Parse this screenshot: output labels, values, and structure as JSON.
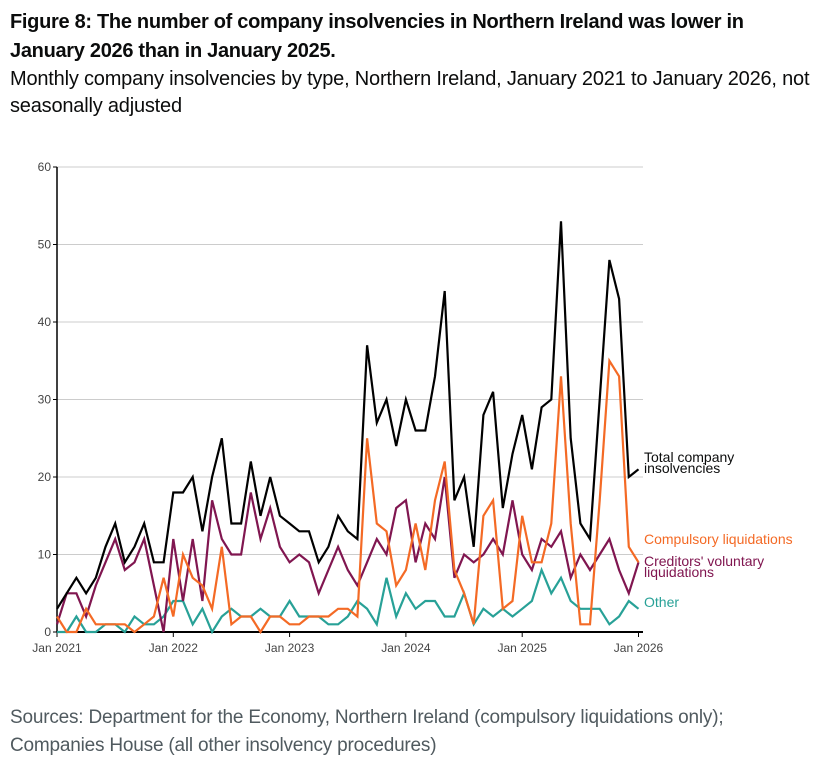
{
  "header": {
    "title": "Figure 8: The number of company insolvencies in Northern Ireland was lower in January 2026 than in January 2025.",
    "subtitle": "Monthly company insolvencies by type, Northern Ireland, January 2021 to January 2026, not seasonally adjusted"
  },
  "footer": {
    "source": "Sources: Department for the Economy, Northern Ireland (compulsory liquidations only); Companies House (all other insolvency procedures)"
  },
  "chart_data": {
    "type": "line",
    "title": "Monthly company insolvencies by type, Northern Ireland, January 2021 to January 2026, not seasonally adjusted",
    "xlabel": "",
    "ylabel": "",
    "ylim": [
      0,
      60
    ],
    "yticks": [
      "0",
      "10",
      "20",
      "30",
      "40",
      "50",
      "60"
    ],
    "xticks": [
      "Jan 2021",
      "Jan 2022",
      "Jan 2023",
      "Jan 2024",
      "Jan 2025",
      "Jan 2026"
    ],
    "x_start": "Jan 2021",
    "x_end": "Jan 2026",
    "grid": "horizontal",
    "legend": "right (direct labels at line ends)",
    "x": [
      "Jan 2021",
      "Feb 2021",
      "Mar 2021",
      "Apr 2021",
      "May 2021",
      "Jun 2021",
      "Jul 2021",
      "Aug 2021",
      "Sep 2021",
      "Oct 2021",
      "Nov 2021",
      "Dec 2021",
      "Jan 2022",
      "Feb 2022",
      "Mar 2022",
      "Apr 2022",
      "May 2022",
      "Jun 2022",
      "Jul 2022",
      "Aug 2022",
      "Sep 2022",
      "Oct 2022",
      "Nov 2022",
      "Dec 2022",
      "Jan 2023",
      "Feb 2023",
      "Mar 2023",
      "Apr 2023",
      "May 2023",
      "Jun 2023",
      "Jul 2023",
      "Aug 2023",
      "Sep 2023",
      "Oct 2023",
      "Nov 2023",
      "Dec 2023",
      "Jan 2024",
      "Feb 2024",
      "Mar 2024",
      "Apr 2024",
      "May 2024",
      "Jun 2024",
      "Jul 2024",
      "Aug 2024",
      "Sep 2024",
      "Oct 2024",
      "Nov 2024",
      "Dec 2024",
      "Jan 2025",
      "Feb 2025",
      "Mar 2025",
      "Apr 2025",
      "May 2025",
      "Jun 2025",
      "Jul 2025",
      "Aug 2025",
      "Sep 2025",
      "Oct 2025",
      "Nov 2025",
      "Dec 2025",
      "Jan 2026"
    ],
    "series": [
      {
        "name": "Total company insolvencies",
        "legend_lines": [
          "Total company",
          "insolvencies"
        ],
        "color": "#000000",
        "values": [
          3,
          5,
          7,
          5,
          7,
          11,
          14,
          9,
          11,
          14,
          9,
          9,
          18,
          18,
          20,
          13,
          20,
          25,
          14,
          14,
          22,
          15,
          20,
          15,
          14,
          13,
          13,
          9,
          11,
          15,
          13,
          12,
          37,
          27,
          30,
          24,
          30,
          26,
          26,
          33,
          44,
          17,
          20,
          11,
          28,
          31,
          16,
          23,
          28,
          21,
          29,
          30,
          53,
          25,
          14,
          12,
          30,
          48,
          43,
          20,
          21
        ]
      },
      {
        "name": "Compulsory liquidations",
        "legend_lines": [
          "Compulsory liquidations"
        ],
        "color": "#f46a25",
        "values": [
          2,
          0,
          0,
          3,
          1,
          1,
          1,
          1,
          0,
          1,
          2,
          7,
          2,
          10,
          7,
          6,
          3,
          11,
          1,
          2,
          2,
          0,
          2,
          2,
          1,
          1,
          2,
          2,
          2,
          3,
          3,
          2,
          25,
          14,
          13,
          6,
          8,
          14,
          8,
          17,
          22,
          8,
          5,
          1,
          15,
          17,
          3,
          4,
          15,
          9,
          9,
          14,
          33,
          14,
          1,
          1,
          17,
          35,
          33,
          11,
          9
        ]
      },
      {
        "name": "Creditors' voluntary liquidations",
        "legend_lines": [
          "Creditors' voluntary",
          "liquidations"
        ],
        "color": "#801650",
        "values": [
          1,
          5,
          5,
          2,
          6,
          9,
          12,
          8,
          9,
          12,
          6,
          0,
          12,
          4,
          12,
          4,
          17,
          12,
          10,
          10,
          18,
          12,
          16,
          11,
          9,
          10,
          9,
          5,
          8,
          11,
          8,
          6,
          9,
          12,
          10,
          16,
          17,
          9,
          14,
          12,
          20,
          7,
          10,
          9,
          10,
          12,
          10,
          17,
          10,
          8,
          12,
          11,
          13,
          7,
          10,
          8,
          10,
          12,
          8,
          5,
          9
        ]
      },
      {
        "name": "Other",
        "legend_lines": [
          "Other"
        ],
        "color": "#28a197",
        "values": [
          0,
          0,
          2,
          0,
          0,
          1,
          1,
          0,
          2,
          1,
          1,
          2,
          4,
          4,
          1,
          3,
          0,
          2,
          3,
          2,
          2,
          3,
          2,
          2,
          4,
          2,
          2,
          2,
          1,
          1,
          2,
          4,
          3,
          1,
          7,
          2,
          5,
          3,
          4,
          4,
          2,
          2,
          5,
          1,
          3,
          2,
          3,
          2,
          3,
          4,
          8,
          5,
          7,
          4,
          3,
          3,
          3,
          1,
          2,
          4,
          3
        ]
      }
    ]
  }
}
